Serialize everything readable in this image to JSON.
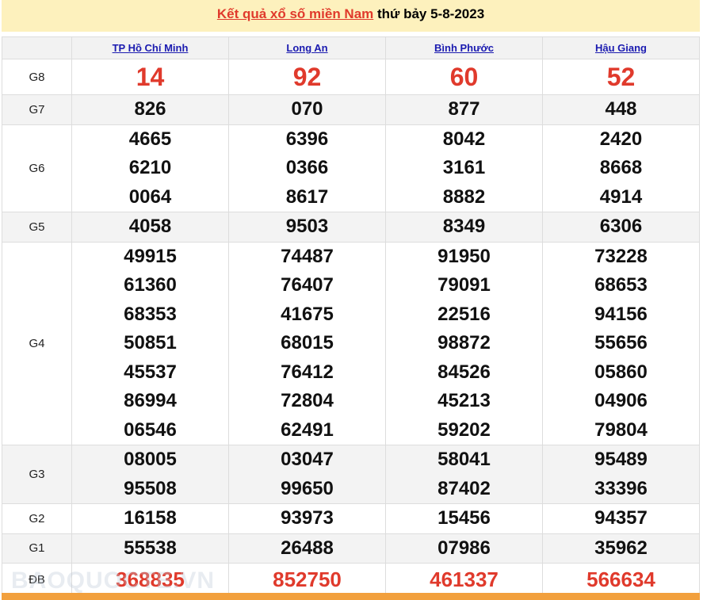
{
  "title": {
    "link": "Kết quả xổ số miền Nam",
    "rest": " thứ bảy 5-8-2023"
  },
  "provinces": [
    "TP Hồ Chí Minh",
    "Long An",
    "Bình Phước",
    "Hậu Giang"
  ],
  "prizes": [
    {
      "label": "G8",
      "rows": [
        [
          "14",
          "92",
          "60",
          "52"
        ]
      ]
    },
    {
      "label": "G7",
      "rows": [
        [
          "826",
          "070",
          "877",
          "448"
        ]
      ]
    },
    {
      "label": "G6",
      "rows": [
        [
          "4665",
          "6396",
          "8042",
          "2420"
        ],
        [
          "6210",
          "0366",
          "3161",
          "8668"
        ],
        [
          "0064",
          "8617",
          "8882",
          "4914"
        ]
      ]
    },
    {
      "label": "G5",
      "rows": [
        [
          "4058",
          "9503",
          "8349",
          "6306"
        ]
      ]
    },
    {
      "label": "G4",
      "rows": [
        [
          "49915",
          "74487",
          "91950",
          "73228"
        ],
        [
          "61360",
          "76407",
          "79091",
          "68653"
        ],
        [
          "68353",
          "41675",
          "22516",
          "94156"
        ],
        [
          "50851",
          "68015",
          "98872",
          "55656"
        ],
        [
          "45537",
          "76412",
          "84526",
          "05860"
        ],
        [
          "86994",
          "72804",
          "45213",
          "04906"
        ],
        [
          "06546",
          "62491",
          "59202",
          "79804"
        ]
      ]
    },
    {
      "label": "G3",
      "rows": [
        [
          "08005",
          "03047",
          "58041",
          "95489"
        ],
        [
          "95508",
          "99650",
          "87402",
          "33396"
        ]
      ]
    },
    {
      "label": "G2",
      "rows": [
        [
          "16158",
          "93973",
          "15456",
          "94357"
        ]
      ]
    },
    {
      "label": "G1",
      "rows": [
        [
          "55538",
          "26488",
          "07986",
          "35962"
        ]
      ]
    },
    {
      "label": "ĐB",
      "rows": [
        [
          "368835",
          "852750",
          "461337",
          "566634"
        ]
      ]
    }
  ],
  "watermark": "BAOQUOCTE.VN",
  "colors": {
    "accent": "#e03a2c",
    "header_bg": "#fdf1bd",
    "link": "#1b1bb0",
    "footer_bar": "#f2a03d"
  }
}
